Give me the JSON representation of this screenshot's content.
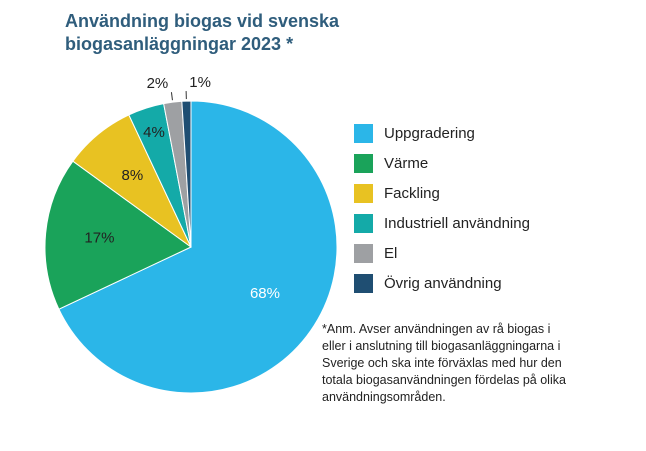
{
  "title_lines": [
    "Användning biogas vid svenska",
    "biogasanläggningar 2023 *"
  ],
  "chart_data": {
    "type": "pie",
    "title": "Användning biogas vid svenska biogasanläggningar 2023 *",
    "slices": [
      {
        "label": "Uppgradering",
        "value": 68,
        "value_label": "68%",
        "color": "#2bb6e8"
      },
      {
        "label": "Värme",
        "value": 17,
        "value_label": "17%",
        "color": "#1aa35a"
      },
      {
        "label": "Fackling",
        "value": 8,
        "value_label": "8%",
        "color": "#e8c222"
      },
      {
        "label": "Industriell användning",
        "value": 4,
        "value_label": "4%",
        "color": "#14aaa8"
      },
      {
        "label": "El",
        "value": 2,
        "value_label": "2%",
        "color": "#9ea0a3"
      },
      {
        "label": "Övrig användning",
        "value": 1,
        "value_label": "1%",
        "color": "#1f4e72"
      }
    ],
    "legend_position": "right"
  },
  "note_lines": [
    "*Anm. Avser användningen av rå biogas i",
    "eller i anslutning till biogasanläggningarna i",
    "Sverige och ska inte förväxlas med hur den",
    "totala biogasanvändningen fördelas på olika",
    "användningsområden."
  ]
}
